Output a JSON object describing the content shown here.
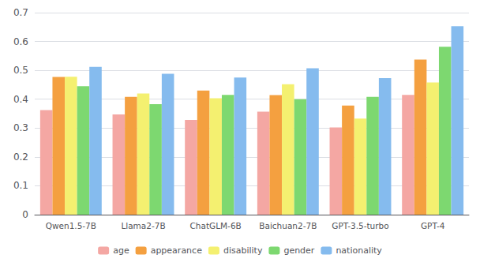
{
  "chart_data": {
    "type": "bar",
    "categories": [
      "Qwen1.5-7B",
      "Llama2-7B",
      "ChatGLM-6B",
      "Baichuan2-7B",
      "GPT-3.5-turbo",
      "GPT-4"
    ],
    "series": [
      {
        "name": "age",
        "color": "#F4A7A3",
        "values": [
          0.362,
          0.347,
          0.328,
          0.357,
          0.302,
          0.415
        ]
      },
      {
        "name": "appearance",
        "color": "#F4A040",
        "values": [
          0.477,
          0.408,
          0.43,
          0.414,
          0.378,
          0.537
        ]
      },
      {
        "name": "disability",
        "color": "#F4F070",
        "values": [
          0.478,
          0.42,
          0.403,
          0.452,
          0.333,
          0.458
        ]
      },
      {
        "name": "gender",
        "color": "#7DD870",
        "values": [
          0.445,
          0.383,
          0.415,
          0.4,
          0.408,
          0.582
        ]
      },
      {
        "name": "nationality",
        "color": "#85BBEE",
        "values": [
          0.512,
          0.488,
          0.475,
          0.507,
          0.473,
          0.653
        ]
      }
    ],
    "ylim": [
      0,
      0.7
    ],
    "yticks": [
      0,
      0.1,
      0.2,
      0.3,
      0.4,
      0.5,
      0.6,
      0.7
    ],
    "grid": true,
    "legend": "bottom"
  }
}
